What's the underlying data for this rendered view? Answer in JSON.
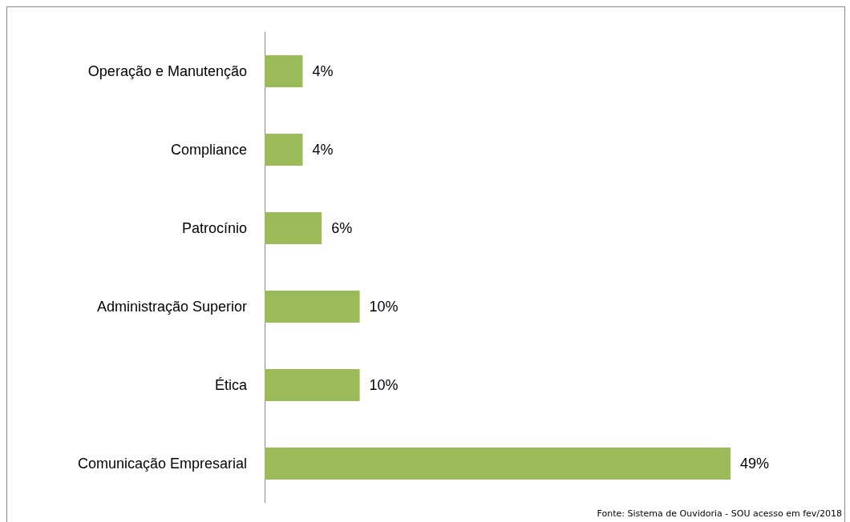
{
  "chart_data": {
    "type": "bar",
    "orientation": "horizontal",
    "categories": [
      "Operação e Manutenção",
      "Compliance",
      "Patrocínio",
      "Administração Superior",
      "Ética",
      "Comunicação Empresarial"
    ],
    "values": [
      4,
      4,
      6,
      10,
      10,
      49
    ],
    "value_labels": [
      "4%",
      "4%",
      "6%",
      "10%",
      "10%",
      "49%"
    ],
    "color": "#9bbb59",
    "grid": false,
    "annotations": [
      "Fonte: Sistema de Ouvidoria - SOU acesso em fev/2018"
    ]
  }
}
